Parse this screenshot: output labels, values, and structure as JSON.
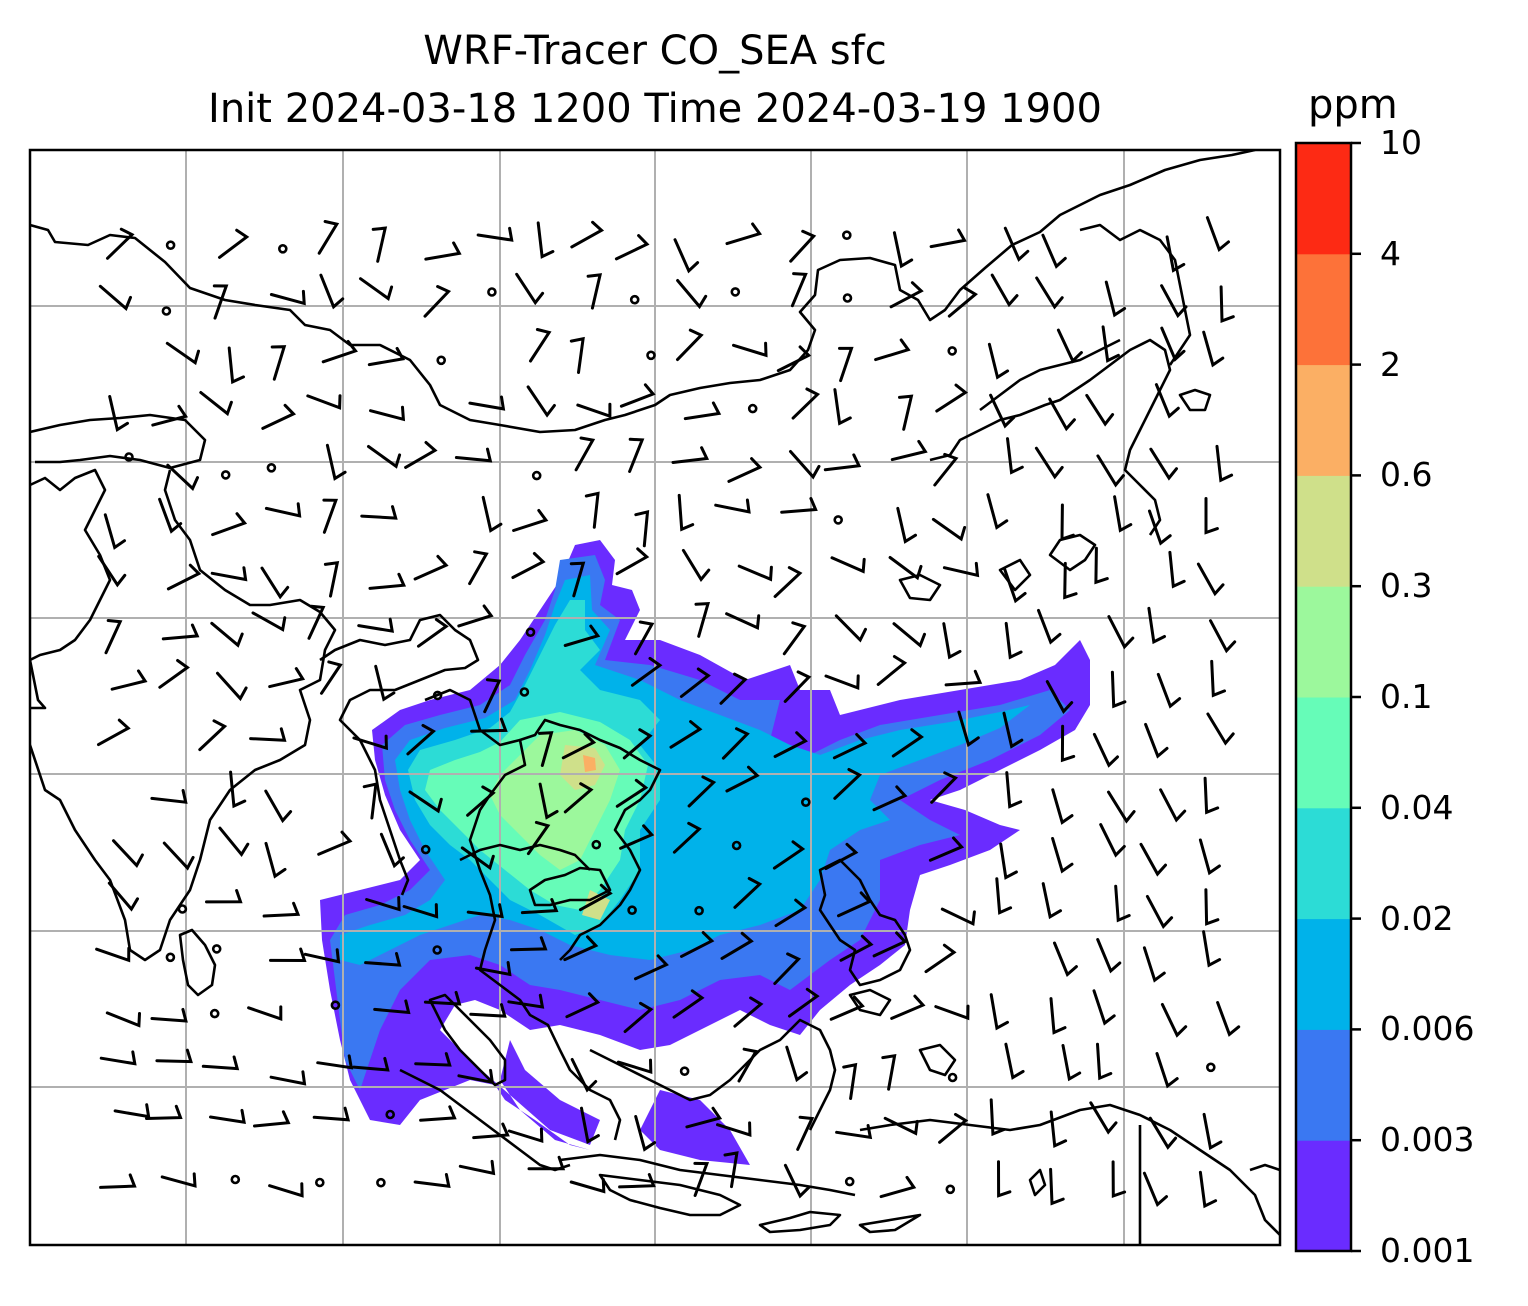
{
  "title_line1": "WRF-Tracer CO_SEA sfc",
  "title_line2": "Init 2024-03-18 1200 Time 2024-03-19 1900",
  "colorbar": {
    "unit": "ppm",
    "levels": [
      "0.001",
      "0.003",
      "0.006",
      "0.02",
      "0.04",
      "0.1",
      "0.3",
      "0.6",
      "2",
      "4",
      "10"
    ],
    "colors": [
      "#6a2cff",
      "#3a78f2",
      "#00b2ea",
      "#2cdcd6",
      "#66fcb8",
      "#9cf89c",
      "#cfe08a",
      "#fbaf64",
      "#fd7239",
      "#fd2a14"
    ]
  },
  "map": {
    "gridlines": true,
    "tracer_colors": {
      "min": "#6a2cff",
      "low": "#3a78f2",
      "mid": "#00b2ea",
      "cyan": "#2cdcd6",
      "green": "#66fcb8",
      "lightgreen": "#9cf89c",
      "yellow": "#cfe08a",
      "orange": "#fbaf64"
    }
  }
}
